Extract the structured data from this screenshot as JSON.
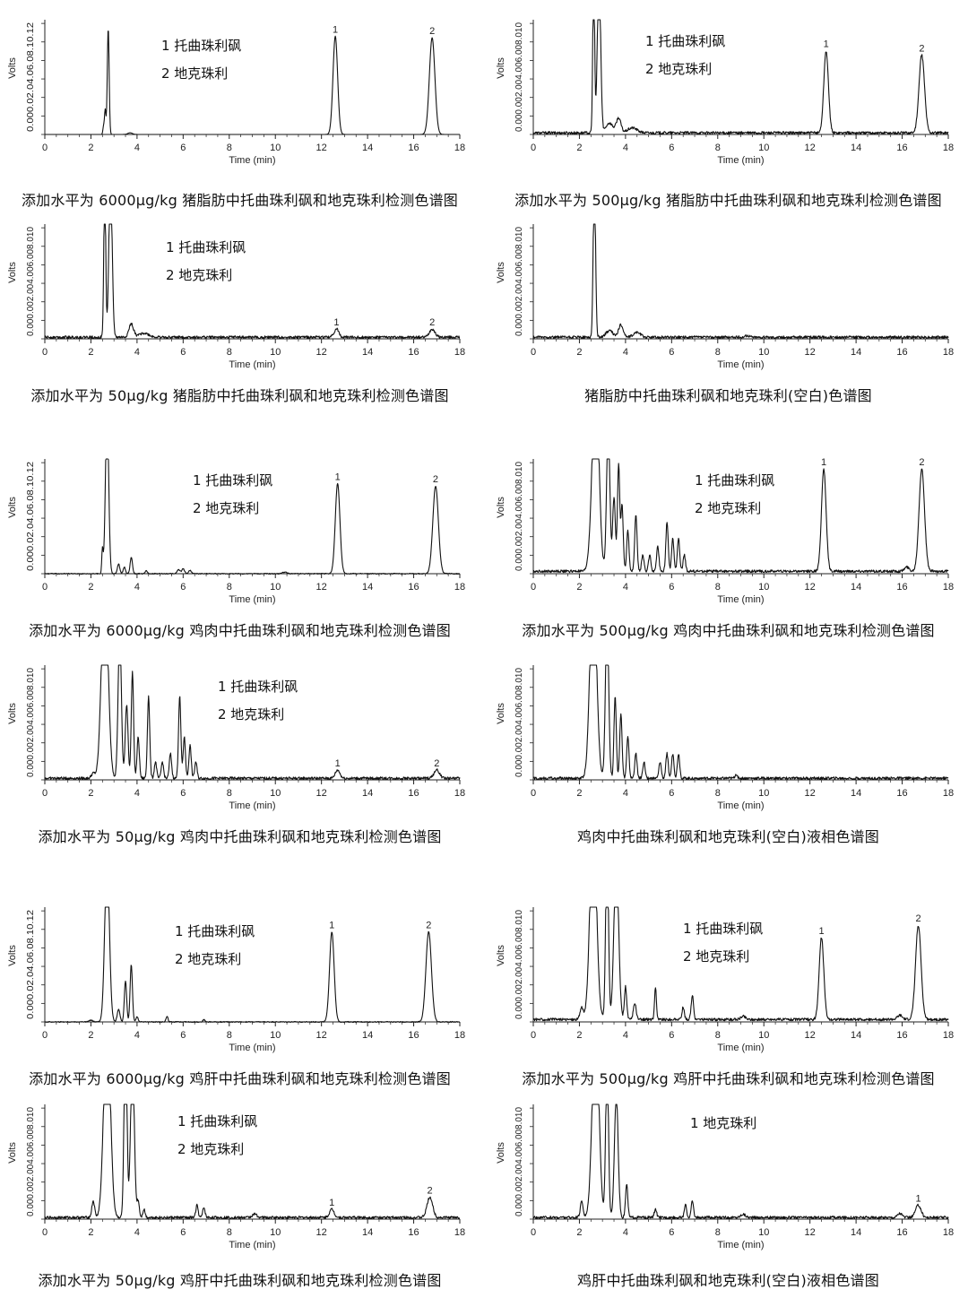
{
  "figure": {
    "panels": [
      {
        "caption": "添加水平为 6000μg/kg 猪脂肪中托曲珠利砜和地克珠利检测色谱图",
        "legend": [
          "1  托曲珠利砜",
          "2  地克珠利"
        ],
        "ytick_text": "0.000.02.04.06.08.10.12",
        "peak_labels": [
          "1",
          "2"
        ]
      },
      {
        "caption": "添加水平为 500μg/kg 猪脂肪中托曲珠利砜和地克珠利检测色谱图",
        "legend": [
          "1  托曲珠利砜",
          "2  地克珠利"
        ],
        "ytick_text": "0.000.002.004.006.008.010",
        "peak_labels": [
          "1",
          "2"
        ]
      },
      {
        "caption": "添加水平为 50μg/kg 猪脂肪中托曲珠利砜和地克珠利检测色谱图",
        "legend": [
          "1  托曲珠利砜",
          "2  地克珠利"
        ],
        "ytick_text": "0.000.002.004.006.008.010",
        "peak_labels": [
          "1",
          "2"
        ]
      },
      {
        "caption": "猪脂肪中托曲珠利砜和地克珠利(空白)色谱图",
        "legend": [],
        "ytick_text": "0.000.002.004.006.008.010",
        "peak_labels": []
      },
      {
        "caption": "添加水平为 6000μg/kg 鸡肉中托曲珠利砜和地克珠利检测色谱图",
        "legend": [
          "1  托曲珠利砜",
          "2  地克珠利"
        ],
        "ytick_text": "0.000.02.04.06.08.10.12",
        "peak_labels": [
          "1",
          "2"
        ]
      },
      {
        "caption": "添加水平为 500μg/kg 鸡肉中托曲珠利砜和地克珠利检测色谱图",
        "legend": [
          "1  托曲珠利砜",
          "2  地克珠利"
        ],
        "ytick_text": "0.000.002.004.006.008.010",
        "peak_labels": [
          "1",
          "2"
        ]
      },
      {
        "caption": "添加水平为 50μg/kg 鸡肉中托曲珠利砜和地克珠利检测色谱图",
        "legend": [
          "1  托曲珠利砜",
          "2  地克珠利"
        ],
        "ytick_text": "0.000.002.004.006.008.010",
        "peak_labels": [
          "1",
          "2"
        ]
      },
      {
        "caption": "鸡肉中托曲珠利砜和地克珠利(空白)液相色谱图",
        "legend": [],
        "ytick_text": "0.000.002.004.006.008.010",
        "peak_labels": []
      },
      {
        "caption": "添加水平为 6000μg/kg 鸡肝中托曲珠利砜和地克珠利检测色谱图",
        "legend": [
          "1  托曲珠利砜",
          "2  地克珠利"
        ],
        "ytick_text": "0.000.02.04.06.08.10.12",
        "peak_labels": [
          "1",
          "2"
        ]
      },
      {
        "caption": "添加水平为 500μg/kg 鸡肝中托曲珠利砜和地克珠利检测色谱图",
        "legend": [
          "1  托曲珠利砜",
          "2  地克珠利"
        ],
        "ytick_text": "0.000.002.004.006.008.010",
        "peak_labels": [
          "1",
          "2"
        ]
      },
      {
        "caption": "添加水平为 50μg/kg 鸡肝中托曲珠利砜和地克珠利检测色谱图",
        "legend": [
          "1  托曲珠利砜",
          "2  地克珠利"
        ],
        "ytick_text": "0.000.002.004.006.008.010",
        "peak_labels": [
          "1",
          "2"
        ]
      },
      {
        "caption": "鸡肝中托曲珠利砜和地克珠利(空白)液相色谱图",
        "legend": [
          "1 地克珠利"
        ],
        "ytick_text": "0.000.002.004.006.008.010",
        "peak_labels": [
          "1"
        ]
      }
    ]
  },
  "chart_data": [
    {
      "type": "line",
      "title": "添加水平为 6000μg/kg 猪脂肪中托曲珠利砜和地克珠利检测色谱图",
      "xlabel": "Time (min)",
      "ylabel": "Volts",
      "xlim": [
        0,
        18
      ],
      "xticks": [
        0,
        2,
        4,
        6,
        8,
        10,
        12,
        14,
        16,
        18
      ],
      "ylim": [
        0,
        0.14
      ],
      "baseline": 0.0,
      "noise": 0.0,
      "peaks": [
        {
          "t": 2.55,
          "h": 0.01,
          "w": 0.03
        },
        {
          "t": 2.62,
          "h": 0.03,
          "w": 0.03
        },
        {
          "t": 2.75,
          "h": 0.13,
          "w": 0.04
        },
        {
          "t": 3.7,
          "h": 0.002,
          "w": 0.1
        },
        {
          "t": 12.6,
          "h": 0.12,
          "w": 0.1,
          "label": "1"
        },
        {
          "t": 16.8,
          "h": 0.118,
          "w": 0.12,
          "label": "2"
        }
      ]
    },
    {
      "type": "line",
      "title": "添加水平为 500μg/kg 猪脂肪中托曲珠利砜和地克珠利检测色谱图",
      "xlabel": "Time (min)",
      "ylabel": "Volts",
      "xlim": [
        0,
        18
      ],
      "xticks": [
        0,
        2,
        4,
        6,
        8,
        10,
        12,
        14,
        16,
        18
      ],
      "ylim": [
        0,
        0.014
      ],
      "baseline": 0.0002,
      "noise": 0.0002,
      "peaks": [
        {
          "t": 2.62,
          "h": 0.02,
          "w": 0.04
        },
        {
          "t": 2.85,
          "h": 0.02,
          "w": 0.07
        },
        {
          "t": 3.3,
          "h": 0.0012,
          "w": 0.15
        },
        {
          "t": 3.7,
          "h": 0.0018,
          "w": 0.1
        },
        {
          "t": 4.3,
          "h": 0.0006,
          "w": 0.2
        },
        {
          "t": 12.7,
          "h": 0.01,
          "w": 0.1,
          "label": "1"
        },
        {
          "t": 16.85,
          "h": 0.0095,
          "w": 0.12,
          "label": "2"
        }
      ]
    },
    {
      "type": "line",
      "title": "添加水平为 50μg/kg 猪脂肪中托曲珠利砜和地克珠利检测色谱图",
      "xlabel": "Time (min)",
      "ylabel": "Volts",
      "xlim": [
        0,
        18
      ],
      "xticks": [
        0,
        2,
        4,
        6,
        8,
        10,
        12,
        14,
        16,
        18
      ],
      "ylim": [
        0,
        0.014
      ],
      "baseline": 0.0002,
      "noise": 0.0002,
      "peaks": [
        {
          "t": 2.6,
          "h": 0.02,
          "w": 0.04
        },
        {
          "t": 2.85,
          "h": 0.02,
          "w": 0.07
        },
        {
          "t": 3.75,
          "h": 0.0016,
          "w": 0.1
        },
        {
          "t": 4.3,
          "h": 0.0005,
          "w": 0.2
        },
        {
          "t": 12.65,
          "h": 0.001,
          "w": 0.1,
          "label": "1"
        },
        {
          "t": 16.8,
          "h": 0.001,
          "w": 0.12,
          "label": "2"
        }
      ]
    },
    {
      "type": "line",
      "title": "猪脂肪中托曲珠利砜和地克珠利(空白)色谱图",
      "xlabel": "Time (min)",
      "ylabel": "Volts",
      "xlim": [
        0,
        18
      ],
      "xticks": [
        0,
        2,
        4,
        6,
        8,
        10,
        12,
        14,
        16,
        18
      ],
      "ylim": [
        0,
        0.014
      ],
      "baseline": 0.0002,
      "noise": 0.0002,
      "peaks": [
        {
          "t": 2.65,
          "h": 0.02,
          "w": 0.05
        },
        {
          "t": 3.3,
          "h": 0.0008,
          "w": 0.15
        },
        {
          "t": 3.8,
          "h": 0.0015,
          "w": 0.1
        },
        {
          "t": 4.5,
          "h": 0.0006,
          "w": 0.15
        },
        {
          "t": 9.3,
          "h": 0.0002,
          "w": 0.1
        }
      ]
    },
    {
      "type": "line",
      "title": "添加水平为 6000μg/kg 鸡肉中托曲珠利砜和地克珠利检测色谱图",
      "xlabel": "Time (min)",
      "ylabel": "Volts",
      "xlim": [
        0,
        18
      ],
      "xticks": [
        0,
        2,
        4,
        6,
        8,
        10,
        12,
        14,
        16,
        18
      ],
      "ylim": [
        0,
        0.14
      ],
      "baseline": 0.0,
      "noise": 0.0007,
      "peaks": [
        {
          "t": 2.5,
          "h": 0.03,
          "w": 0.03
        },
        {
          "t": 2.7,
          "h": 0.2,
          "w": 0.07
        },
        {
          "t": 3.2,
          "h": 0.012,
          "w": 0.05
        },
        {
          "t": 3.45,
          "h": 0.008,
          "w": 0.05
        },
        {
          "t": 3.75,
          "h": 0.02,
          "w": 0.05
        },
        {
          "t": 4.4,
          "h": 0.004,
          "w": 0.05
        },
        {
          "t": 5.8,
          "h": 0.005,
          "w": 0.06
        },
        {
          "t": 6.0,
          "h": 0.006,
          "w": 0.06
        },
        {
          "t": 6.3,
          "h": 0.004,
          "w": 0.06
        },
        {
          "t": 10.4,
          "h": 0.002,
          "w": 0.1
        },
        {
          "t": 12.7,
          "h": 0.11,
          "w": 0.1,
          "label": "1"
        },
        {
          "t": 16.95,
          "h": 0.107,
          "w": 0.12,
          "label": "2"
        }
      ]
    },
    {
      "type": "line",
      "title": "添加水平为 500μg/kg 鸡肉中托曲珠利砜和地克珠利检测色谱图",
      "xlabel": "Time (min)",
      "ylabel": "Volts",
      "xlim": [
        0,
        18
      ],
      "xticks": [
        0,
        2,
        4,
        6,
        8,
        10,
        12,
        14,
        16,
        18
      ],
      "ylim": [
        0,
        0.014
      ],
      "baseline": 0.0003,
      "noise": 0.0002,
      "peaks": [
        {
          "t": 2.4,
          "h": 0.0006,
          "w": 0.08
        },
        {
          "t": 2.7,
          "h": 0.025,
          "w": 0.14
        },
        {
          "t": 3.25,
          "h": 0.018,
          "w": 0.07
        },
        {
          "t": 3.5,
          "h": 0.009,
          "w": 0.06
        },
        {
          "t": 3.7,
          "h": 0.013,
          "w": 0.05
        },
        {
          "t": 3.85,
          "h": 0.008,
          "w": 0.05
        },
        {
          "t": 4.1,
          "h": 0.005,
          "w": 0.05
        },
        {
          "t": 4.45,
          "h": 0.007,
          "w": 0.05
        },
        {
          "t": 4.75,
          "h": 0.002,
          "w": 0.05
        },
        {
          "t": 5.05,
          "h": 0.002,
          "w": 0.05
        },
        {
          "t": 5.4,
          "h": 0.003,
          "w": 0.05
        },
        {
          "t": 5.8,
          "h": 0.006,
          "w": 0.05
        },
        {
          "t": 6.05,
          "h": 0.004,
          "w": 0.05
        },
        {
          "t": 6.3,
          "h": 0.004,
          "w": 0.05
        },
        {
          "t": 6.55,
          "h": 0.002,
          "w": 0.05
        },
        {
          "t": 16.2,
          "h": 0.0005,
          "w": 0.1
        },
        {
          "t": 12.6,
          "h": 0.0125,
          "w": 0.1,
          "label": "1"
        },
        {
          "t": 16.85,
          "h": 0.0125,
          "w": 0.12,
          "label": "2"
        }
      ]
    },
    {
      "type": "line",
      "title": "添加水平为 50μg/kg 鸡肉中托曲珠利砜和地克珠利检测色谱图",
      "xlabel": "Time (min)",
      "ylabel": "Volts",
      "xlim": [
        0,
        18
      ],
      "xticks": [
        0,
        2,
        4,
        6,
        8,
        10,
        12,
        14,
        16,
        18
      ],
      "ylim": [
        0,
        0.014
      ],
      "baseline": 0.0002,
      "noise": 0.0002,
      "peaks": [
        {
          "t": 2.1,
          "h": 0.0006,
          "w": 0.08
        },
        {
          "t": 2.6,
          "h": 0.025,
          "w": 0.14
        },
        {
          "t": 3.25,
          "h": 0.018,
          "w": 0.07
        },
        {
          "t": 3.55,
          "h": 0.009,
          "w": 0.06
        },
        {
          "t": 3.8,
          "h": 0.013,
          "w": 0.05
        },
        {
          "t": 4.05,
          "h": 0.005,
          "w": 0.05
        },
        {
          "t": 4.5,
          "h": 0.01,
          "w": 0.05
        },
        {
          "t": 4.8,
          "h": 0.002,
          "w": 0.05
        },
        {
          "t": 5.1,
          "h": 0.002,
          "w": 0.05
        },
        {
          "t": 5.45,
          "h": 0.003,
          "w": 0.05
        },
        {
          "t": 5.85,
          "h": 0.01,
          "w": 0.05
        },
        {
          "t": 6.05,
          "h": 0.005,
          "w": 0.05
        },
        {
          "t": 6.3,
          "h": 0.004,
          "w": 0.05
        },
        {
          "t": 6.55,
          "h": 0.002,
          "w": 0.05
        },
        {
          "t": 12.7,
          "h": 0.001,
          "w": 0.1,
          "label": "1"
        },
        {
          "t": 17.0,
          "h": 0.001,
          "w": 0.12,
          "label": "2"
        }
      ]
    },
    {
      "type": "line",
      "title": "鸡肉中托曲珠利砜和地克珠利(空白)液相色谱图",
      "xlabel": "Time (min)",
      "ylabel": "Volts",
      "xlim": [
        0,
        18
      ],
      "xticks": [
        0,
        2,
        4,
        6,
        8,
        10,
        12,
        14,
        16,
        18
      ],
      "ylim": [
        0,
        0.014
      ],
      "baseline": 0.0002,
      "noise": 0.0002,
      "peaks": [
        {
          "t": 2.6,
          "h": 0.025,
          "w": 0.14
        },
        {
          "t": 3.2,
          "h": 0.02,
          "w": 0.07
        },
        {
          "t": 3.55,
          "h": 0.01,
          "w": 0.05
        },
        {
          "t": 3.8,
          "h": 0.008,
          "w": 0.05
        },
        {
          "t": 4.1,
          "h": 0.005,
          "w": 0.05
        },
        {
          "t": 4.45,
          "h": 0.003,
          "w": 0.05
        },
        {
          "t": 4.8,
          "h": 0.002,
          "w": 0.05
        },
        {
          "t": 5.5,
          "h": 0.002,
          "w": 0.05
        },
        {
          "t": 5.8,
          "h": 0.003,
          "w": 0.05
        },
        {
          "t": 6.05,
          "h": 0.003,
          "w": 0.05
        },
        {
          "t": 6.3,
          "h": 0.003,
          "w": 0.05
        },
        {
          "t": 8.8,
          "h": 0.0005,
          "w": 0.05
        }
      ]
    },
    {
      "type": "line",
      "title": "添加水平为 6000μg/kg 鸡肝中托曲珠利砜和地克珠利检测色谱图",
      "xlabel": "Time (min)",
      "ylabel": "Volts",
      "xlim": [
        0,
        18
      ],
      "xticks": [
        0,
        2,
        4,
        6,
        8,
        10,
        12,
        14,
        16,
        18
      ],
      "ylim": [
        0,
        0.14
      ],
      "baseline": 0.0,
      "noise": 0.0007,
      "peaks": [
        {
          "t": 2.0,
          "h": 0.002,
          "w": 0.08
        },
        {
          "t": 2.7,
          "h": 0.2,
          "w": 0.1
        },
        {
          "t": 3.2,
          "h": 0.015,
          "w": 0.06
        },
        {
          "t": 3.5,
          "h": 0.05,
          "w": 0.05
        },
        {
          "t": 3.75,
          "h": 0.07,
          "w": 0.05
        },
        {
          "t": 4.0,
          "h": 0.006,
          "w": 0.05
        },
        {
          "t": 5.3,
          "h": 0.007,
          "w": 0.04
        },
        {
          "t": 6.9,
          "h": 0.003,
          "w": 0.04
        },
        {
          "t": 12.45,
          "h": 0.11,
          "w": 0.1,
          "label": "1"
        },
        {
          "t": 16.65,
          "h": 0.11,
          "w": 0.12,
          "label": "2"
        }
      ]
    },
    {
      "type": "line",
      "title": "添加水平为 500μg/kg 鸡肝中托曲珠利砜和地克珠利检测色谱图",
      "xlabel": "Time (min)",
      "ylabel": "Volts",
      "xlim": [
        0,
        18
      ],
      "xticks": [
        0,
        2,
        4,
        6,
        8,
        10,
        12,
        14,
        16,
        18
      ],
      "ylim": [
        0,
        0.014
      ],
      "baseline": 0.0003,
      "noise": 0.0002,
      "peaks": [
        {
          "t": 2.1,
          "h": 0.0015,
          "w": 0.07
        },
        {
          "t": 2.6,
          "h": 0.025,
          "w": 0.14
        },
        {
          "t": 3.2,
          "h": 0.022,
          "w": 0.06
        },
        {
          "t": 3.6,
          "h": 0.02,
          "w": 0.1
        },
        {
          "t": 4.0,
          "h": 0.004,
          "w": 0.05
        },
        {
          "t": 4.4,
          "h": 0.002,
          "w": 0.06
        },
        {
          "t": 5.3,
          "h": 0.004,
          "w": 0.04
        },
        {
          "t": 6.5,
          "h": 0.0015,
          "w": 0.05
        },
        {
          "t": 6.9,
          "h": 0.003,
          "w": 0.05
        },
        {
          "t": 9.1,
          "h": 0.0004,
          "w": 0.1
        },
        {
          "t": 15.9,
          "h": 0.0005,
          "w": 0.1
        },
        {
          "t": 12.5,
          "h": 0.01,
          "w": 0.1,
          "label": "1"
        },
        {
          "t": 16.7,
          "h": 0.0115,
          "w": 0.12,
          "label": "2"
        }
      ]
    },
    {
      "type": "line",
      "title": "添加水平为 50μg/kg 鸡肝中托曲珠利砜和地克珠利检测色谱图",
      "xlabel": "Time (min)",
      "ylabel": "Volts",
      "xlim": [
        0,
        18
      ],
      "xticks": [
        0,
        2,
        4,
        6,
        8,
        10,
        12,
        14,
        16,
        18
      ],
      "ylim": [
        0,
        0.014
      ],
      "baseline": 0.0002,
      "noise": 0.0002,
      "peaks": [
        {
          "t": 2.1,
          "h": 0.002,
          "w": 0.06
        },
        {
          "t": 2.7,
          "h": 0.025,
          "w": 0.14
        },
        {
          "t": 3.5,
          "h": 0.025,
          "w": 0.06
        },
        {
          "t": 3.8,
          "h": 0.02,
          "w": 0.08
        },
        {
          "t": 4.05,
          "h": 0.002,
          "w": 0.05
        },
        {
          "t": 4.3,
          "h": 0.001,
          "w": 0.05
        },
        {
          "t": 6.6,
          "h": 0.0015,
          "w": 0.05
        },
        {
          "t": 6.9,
          "h": 0.0012,
          "w": 0.05
        },
        {
          "t": 9.1,
          "h": 0.0004,
          "w": 0.1
        },
        {
          "t": 12.45,
          "h": 0.001,
          "w": 0.1,
          "label": "1"
        },
        {
          "t": 16.7,
          "h": 0.0025,
          "w": 0.12,
          "label": "2"
        }
      ]
    },
    {
      "type": "line",
      "title": "鸡肝中托曲珠利砜和地克珠利(空白)液相色谱图",
      "xlabel": "Time (min)",
      "ylabel": "Volts",
      "xlim": [
        0,
        18
      ],
      "xticks": [
        0,
        2,
        4,
        6,
        8,
        10,
        12,
        14,
        16,
        18
      ],
      "ylim": [
        0,
        0.014
      ],
      "baseline": 0.0002,
      "noise": 0.0002,
      "peaks": [
        {
          "t": 2.1,
          "h": 0.002,
          "w": 0.06
        },
        {
          "t": 2.7,
          "h": 0.025,
          "w": 0.14
        },
        {
          "t": 3.2,
          "h": 0.02,
          "w": 0.06
        },
        {
          "t": 3.6,
          "h": 0.015,
          "w": 0.08
        },
        {
          "t": 4.05,
          "h": 0.004,
          "w": 0.05
        },
        {
          "t": 5.3,
          "h": 0.001,
          "w": 0.05
        },
        {
          "t": 6.6,
          "h": 0.0015,
          "w": 0.05
        },
        {
          "t": 6.9,
          "h": 0.002,
          "w": 0.05
        },
        {
          "t": 9.1,
          "h": 0.0004,
          "w": 0.1
        },
        {
          "t": 15.9,
          "h": 0.0005,
          "w": 0.1
        },
        {
          "t": 16.7,
          "h": 0.0015,
          "w": 0.12,
          "label": "1"
        }
      ]
    }
  ]
}
